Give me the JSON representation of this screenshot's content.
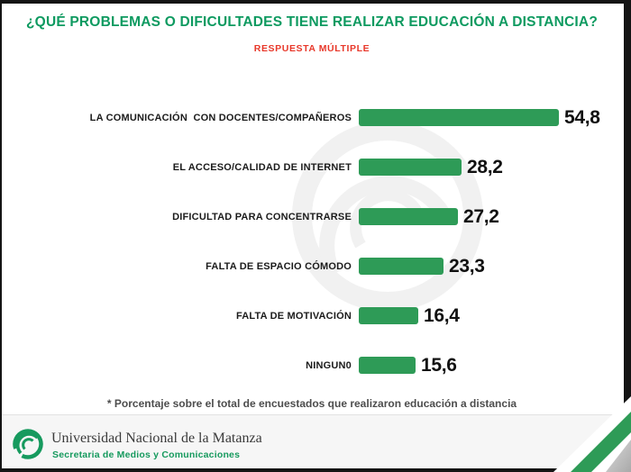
{
  "header": {
    "title": "¿QUÉ PROBLEMAS O DIFICULTADES TIENE REALIZAR EDUCACIÓN A DISTANCIA?",
    "subtitle": "RESPUESTA MÚLTIPLE"
  },
  "chart_data": {
    "type": "bar",
    "orientation": "horizontal",
    "categories": [
      "LA COMUNICACIÓN  CON DOCENTES/COMPAÑEROS",
      "EL ACCESO/CALIDAD DE INTERNET",
      "DIFICULTAD PARA CONCENTRARSE",
      "FALTA DE ESPACIO CÓMODO",
      "FALTA DE MOTIVACIÓN",
      "NINGUN0"
    ],
    "values": [
      54.8,
      28.2,
      27.2,
      23.3,
      16.4,
      15.6
    ],
    "value_labels": [
      "54,8",
      "28,2",
      "27,2",
      "23,3",
      "16,4",
      "15,6"
    ],
    "bar_color": "#2E9B57",
    "xlim": [
      0,
      60
    ],
    "grid": false,
    "legend": false,
    "value_label_position": "right-of-bar"
  },
  "footnote": "* Porcentaje sobre el total de encuestados que realizaron educación a distancia",
  "footer": {
    "university": "Universidad Nacional de la Matanza",
    "department": "Secretaria de Medios y Comunicaciones"
  },
  "colors": {
    "title_green": "#0E9A60",
    "subtitle_red": "#E8382A",
    "bar_green": "#2E9B57",
    "footer_background": "#F6F6F6",
    "logo_green": "#169A5E",
    "corner_stripe_green": "#2E9B57",
    "corner_triangle_gray": "#BDBDBD",
    "frame_border_black": "#141414"
  },
  "icons": {
    "logo": "unlam-circular-swoosh-logo",
    "watermark": "unlam-logo-watermark"
  }
}
